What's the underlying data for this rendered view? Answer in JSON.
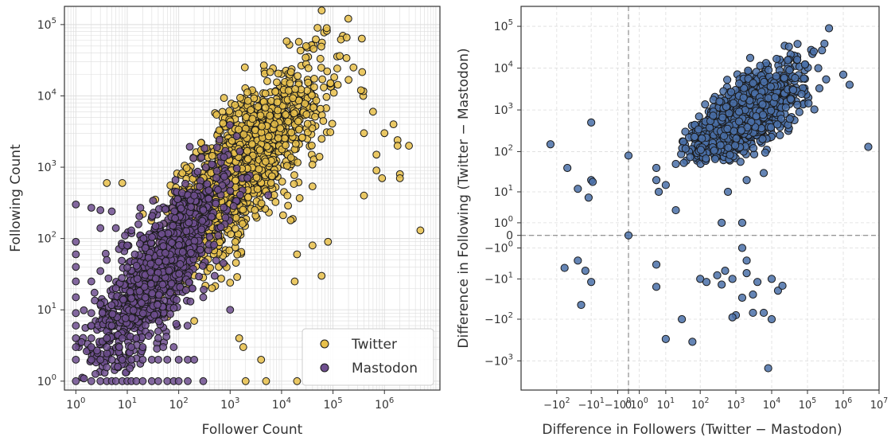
{
  "colors": {
    "twitter": "#e8c04a",
    "mastodon": "#6f4f8f",
    "difference": "#4a70a8",
    "marker_edge": "#1a1a1a",
    "grid": "#dddddd"
  },
  "chart_data": [
    {
      "type": "scatter",
      "xlabel": "Follower Count",
      "ylabel": "Following Count",
      "x_scale": "log",
      "y_scale": "log",
      "xlim": [
        0.6,
        12000000
      ],
      "ylim": [
        0.75,
        180000
      ],
      "x_ticks": [
        1,
        10,
        100,
        1000,
        10000,
        100000,
        1000000
      ],
      "x_tick_labels": [
        "10^0",
        "10^1",
        "10^2",
        "10^3",
        "10^4",
        "10^5",
        "10^6"
      ],
      "y_ticks": [
        1,
        10,
        100,
        1000,
        10000,
        100000
      ],
      "y_tick_labels": [
        "10^0",
        "10^1",
        "10^2",
        "10^3",
        "10^4",
        "10^5"
      ],
      "grid": "major-and-minor",
      "legend": "lower-right",
      "series": [
        {
          "name": "Twitter",
          "color": "#e8c04a",
          "cloud": {
            "center_log_x": 3.25,
            "center_log_y": 3.0,
            "slope": 0.72,
            "spread_log_x": 0.75,
            "spread_log_y": 0.45
          },
          "points": [
            [
              30000,
              50000
            ],
            [
              50000,
              90000
            ],
            [
              250000,
              25000
            ],
            [
              1500000,
              4000
            ],
            [
              3000000,
              2000
            ],
            [
              350000,
              12000
            ],
            [
              600000,
              6000
            ],
            [
              1800000,
              2400
            ],
            [
              1000000,
              3000
            ],
            [
              900000,
              700
            ],
            [
              5000000,
              130
            ],
            [
              60000,
              30
            ],
            [
              40000,
              80
            ],
            [
              15000,
              180
            ],
            [
              700000,
              1500
            ],
            [
              400000,
              3000
            ],
            [
              2000000,
              800
            ],
            [
              4,
              600
            ],
            [
              8,
              600
            ],
            [
              13,
              6
            ],
            [
              30,
              13
            ],
            [
              60,
              8
            ],
            [
              200,
              7
            ],
            [
              600,
              40
            ],
            [
              1000,
              24
            ],
            [
              1500,
              4
            ],
            [
              1800,
              3
            ],
            [
              4000,
              2
            ],
            [
              2000,
              1
            ],
            [
              5000,
              1
            ],
            [
              20000,
              1
            ],
            [
              1800000,
              2000
            ],
            [
              2000000,
              700
            ],
            [
              20000,
              60
            ],
            [
              18000,
              25
            ],
            [
              80000,
              90
            ],
            [
              400000,
              400
            ],
            [
              700000,
              900
            ]
          ]
        },
        {
          "name": "Mastodon",
          "color": "#6f4f8f",
          "cloud": {
            "center_log_x": 1.6,
            "center_log_y": 1.55,
            "slope": 0.85,
            "spread_log_x": 0.65,
            "spread_log_y": 0.4
          },
          "points": [
            [
              1,
              300
            ],
            [
              1,
              90
            ],
            [
              1,
              60
            ],
            [
              1,
              40
            ],
            [
              1,
              25
            ],
            [
              1,
              15
            ],
            [
              1,
              9
            ],
            [
              1,
              6
            ],
            [
              1,
              4
            ],
            [
              1,
              3
            ],
            [
              1,
              2
            ],
            [
              1,
              1
            ],
            [
              2,
              1
            ],
            [
              3,
              1
            ],
            [
              4,
              1
            ],
            [
              5,
              1
            ],
            [
              6,
              1
            ],
            [
              8,
              1
            ],
            [
              10,
              1
            ],
            [
              12,
              1
            ],
            [
              15,
              1
            ],
            [
              20,
              1
            ],
            [
              2,
              2
            ],
            [
              3,
              2
            ],
            [
              5,
              2
            ],
            [
              8,
              2
            ],
            [
              12,
              2
            ],
            [
              20,
              2
            ],
            [
              30,
              2
            ],
            [
              2,
              3
            ],
            [
              4,
              3
            ],
            [
              7,
              3
            ],
            [
              12,
              3
            ],
            [
              20,
              3
            ],
            [
              2,
              4
            ],
            [
              4,
              4
            ],
            [
              8,
              4
            ],
            [
              15,
              4
            ],
            [
              2,
              6
            ],
            [
              5,
              6
            ],
            [
              2,
              9
            ],
            [
              3,
              12
            ],
            [
              6,
              20
            ],
            [
              2,
              25
            ],
            [
              3,
              35
            ],
            [
              4,
              50
            ],
            [
              8,
              80
            ],
            [
              3,
              140
            ],
            [
              6,
              140
            ],
            [
              9,
              110
            ],
            [
              2,
              270
            ],
            [
              3,
              250
            ],
            [
              5,
              240
            ],
            [
              12,
              130
            ],
            [
              18,
              270
            ],
            [
              10,
              80
            ],
            [
              14,
              60
            ],
            [
              30,
              1
            ],
            [
              40,
              1
            ],
            [
              60,
              1
            ],
            [
              80,
              1
            ],
            [
              100,
              1
            ],
            [
              150,
              1
            ],
            [
              300,
              1
            ],
            [
              40,
              2
            ],
            [
              60,
              2
            ],
            [
              100,
              2
            ],
            [
              150,
              2
            ],
            [
              200,
              2
            ],
            [
              50,
              3
            ],
            [
              80,
              3
            ],
            [
              40,
              4
            ],
            [
              40,
              5
            ],
            [
              300,
              15
            ],
            [
              500,
              30
            ],
            [
              1000,
              10
            ],
            [
              200,
              400
            ],
            [
              300,
              250
            ]
          ]
        }
      ]
    },
    {
      "type": "scatter",
      "xlabel": "Difference in Followers (Twitter − Mastodon)",
      "ylabel": "Difference in Following (Twitter − Mastodon)",
      "x_scale": "symlog",
      "y_scale": "symlog",
      "xlim": [
        -1000,
        10000000
      ],
      "ylim": [
        -5000,
        300000
      ],
      "x_ticks": [
        -100,
        -10,
        -1,
        0,
        1,
        10,
        100,
        1000,
        10000,
        100000,
        1000000,
        10000000
      ],
      "x_tick_labels": [
        "−10^2",
        "−10^1",
        "−10^0",
        "0",
        "10^0",
        "10^1",
        "10^2",
        "10^3",
        "10^4",
        "10^5",
        "10^6",
        "10^7"
      ],
      "y_ticks": [
        -1000,
        -100,
        -10,
        -1,
        0,
        1,
        10,
        100,
        1000,
        10000,
        100000
      ],
      "y_tick_labels": [
        "−10^3",
        "−10^2",
        "−10^1",
        "−10^0",
        "0",
        "10^0",
        "10^1",
        "10^2",
        "10^3",
        "10^4",
        "10^5"
      ],
      "grid": "dashed",
      "reference_lines": {
        "x": 0,
        "y": 0
      },
      "series": [
        {
          "color": "#4a70a8",
          "cloud": {
            "center_log_x": 3.2,
            "center_log_y": 2.85,
            "slope": 0.55,
            "spread_log_x": 0.75,
            "spread_log_y": 0.4
          },
          "points": [
            [
              -150,
              150
            ],
            [
              -50,
              40
            ],
            [
              -25,
              12
            ],
            [
              -12,
              7
            ],
            [
              -10,
              20
            ],
            [
              -9,
              18
            ],
            [
              -10,
              500
            ],
            [
              0,
              80
            ],
            [
              0,
              0
            ],
            [
              5,
              40
            ],
            [
              5,
              20
            ],
            [
              6,
              10
            ],
            [
              10,
              15
            ],
            [
              20,
              3
            ],
            [
              20,
              50
            ],
            [
              400,
              1
            ],
            [
              1500,
              1
            ],
            [
              1000000,
              7000
            ],
            [
              1500000,
              4000
            ],
            [
              5000000,
              130
            ],
            [
              200000,
              10000
            ],
            [
              150000,
              25000
            ],
            [
              400000,
              90000
            ],
            [
              40000,
              3000
            ],
            [
              600,
              10
            ],
            [
              2000,
              20
            ],
            [
              6000,
              30
            ],
            [
              -60,
              -5
            ],
            [
              -25,
              -3
            ],
            [
              -15,
              -6
            ],
            [
              -10,
              -12
            ],
            [
              -20,
              -45
            ],
            [
              5,
              -4
            ],
            [
              5,
              -16
            ],
            [
              100,
              -10
            ],
            [
              300,
              -8
            ],
            [
              500,
              -6
            ],
            [
              800,
              -10
            ],
            [
              2000,
              -7
            ],
            [
              4000,
              -12
            ],
            [
              10000,
              -10
            ],
            [
              15000,
              -20
            ],
            [
              20000,
              -15
            ],
            [
              3000,
              -25
            ],
            [
              2000,
              -3
            ],
            [
              1500,
              -1
            ],
            [
              1000,
              -80
            ],
            [
              3000,
              -70
            ],
            [
              6000,
              -70
            ],
            [
              10000,
              -100
            ],
            [
              8000,
              -1500
            ],
            [
              10,
              -300
            ],
            [
              60,
              -350
            ],
            [
              800,
              -90
            ],
            [
              1500,
              -30
            ],
            [
              150,
              -12
            ],
            [
              400,
              -14
            ],
            [
              30,
              -100
            ]
          ]
        }
      ]
    }
  ],
  "legend_box": {
    "twitter_label": "Twitter",
    "mastodon_label": "Mastodon"
  }
}
